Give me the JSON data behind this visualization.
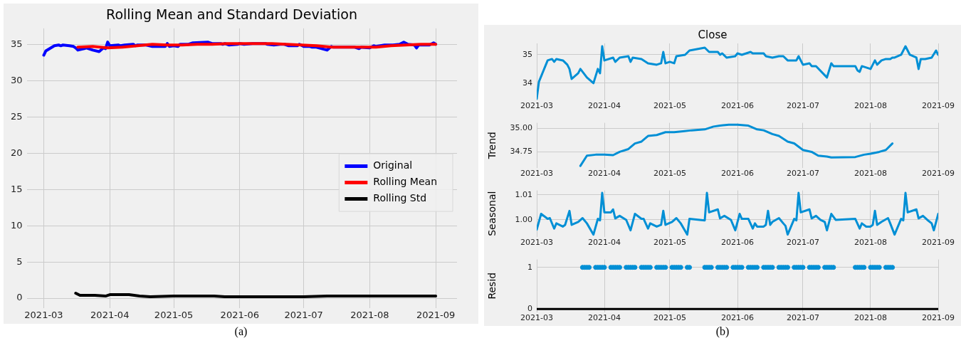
{
  "chart_data": [
    {
      "type": "line",
      "title": "Rolling Mean and Standard Deviation",
      "xlim": [
        "2021-02-21",
        "2021-09-11"
      ],
      "xticks": [
        "2021-03",
        "2021-04",
        "2021-05",
        "2021-06",
        "2021-07",
        "2021-08",
        "2021-09"
      ],
      "ylim": [
        -1.4,
        37.2
      ],
      "yticks": [
        0,
        5,
        10,
        15,
        20,
        25,
        30,
        35
      ],
      "grid": true,
      "legend": "right",
      "marker": "none",
      "annotations": [
        "(a)"
      ],
      "series": [
        {
          "name": "Original",
          "color": "#0000ff",
          "x": [
            "2021-03-01",
            "2021-03-02",
            "2021-03-06",
            "2021-03-08",
            "2021-03-09",
            "2021-03-10",
            "2021-03-13",
            "2021-03-15",
            "2021-03-16",
            "2021-03-17",
            "2021-03-20",
            "2021-03-21",
            "2021-03-22",
            "2021-03-24",
            "2021-03-27",
            "2021-03-29",
            "2021-03-30",
            "2021-03-31",
            "2021-04-01",
            "2021-04-05",
            "2021-04-06",
            "2021-04-08",
            "2021-04-12",
            "2021-04-13",
            "2021-04-14",
            "2021-04-18",
            "2021-04-21",
            "2021-04-25",
            "2021-04-27",
            "2021-04-28",
            "2021-04-29",
            "2021-05-01",
            "2021-05-03",
            "2021-05-04",
            "2021-05-08",
            "2021-05-10",
            "2021-05-17",
            "2021-05-19",
            "2021-05-23",
            "2021-05-24",
            "2021-05-25",
            "2021-05-27",
            "2021-05-31",
            "2021-06-01",
            "2021-06-03",
            "2021-06-07",
            "2021-06-08",
            "2021-06-13",
            "2021-06-14",
            "2021-06-17",
            "2021-06-20",
            "2021-06-22",
            "2021-06-24",
            "2021-06-28",
            "2021-06-29",
            "2021-07-01",
            "2021-07-04",
            "2021-07-05",
            "2021-07-07",
            "2021-07-12",
            "2021-07-14",
            "2021-07-15",
            "2021-07-25",
            "2021-07-26",
            "2021-07-27",
            "2021-07-28",
            "2021-08-01",
            "2021-08-03",
            "2021-08-04",
            "2021-08-06",
            "2021-08-08",
            "2021-08-10",
            "2021-08-11",
            "2021-08-12",
            "2021-08-15",
            "2021-08-17",
            "2021-08-19",
            "2021-08-22",
            "2021-08-23",
            "2021-08-24",
            "2021-08-26",
            "2021-08-29",
            "2021-08-31",
            "2021-09-01"
          ],
          "values": [
            33.5,
            34.1,
            34.8,
            34.9,
            34.8,
            34.9,
            34.8,
            34.7,
            34.5,
            34.2,
            34.4,
            34.5,
            34.4,
            34.2,
            34.0,
            34.5,
            34.4,
            35.3,
            34.8,
            34.9,
            34.8,
            34.9,
            35.0,
            34.8,
            34.9,
            34.9,
            34.7,
            34.7,
            34.7,
            35.1,
            34.7,
            34.8,
            34.7,
            35.0,
            35.0,
            35.2,
            35.3,
            35.1,
            35.1,
            35.0,
            35.1,
            34.9,
            35.0,
            35.1,
            35.0,
            35.1,
            35.1,
            35.1,
            35.0,
            34.9,
            35.0,
            35.0,
            34.8,
            34.8,
            35.0,
            34.7,
            34.7,
            34.6,
            34.6,
            34.2,
            34.7,
            34.6,
            34.6,
            34.5,
            34.4,
            34.6,
            34.5,
            34.8,
            34.7,
            34.8,
            34.9,
            34.9,
            34.9,
            34.9,
            35.0,
            35.3,
            35.0,
            34.9,
            34.5,
            34.9,
            34.9,
            34.9,
            35.2,
            35.0
          ]
        },
        {
          "name": "Rolling Mean",
          "color": "#ff0000",
          "x": [
            "2021-03-17",
            "2021-03-24",
            "2021-03-31",
            "2021-04-07",
            "2021-04-14",
            "2021-04-21",
            "2021-04-28",
            "2021-05-05",
            "2021-05-12",
            "2021-05-19",
            "2021-05-26",
            "2021-06-02",
            "2021-06-09",
            "2021-06-16",
            "2021-06-23",
            "2021-06-30",
            "2021-07-07",
            "2021-07-14",
            "2021-07-21",
            "2021-07-28",
            "2021-08-04",
            "2021-08-11",
            "2021-08-18",
            "2021-08-25",
            "2021-09-01"
          ],
          "values": [
            34.6,
            34.7,
            34.5,
            34.6,
            34.8,
            35.0,
            34.9,
            34.9,
            35.0,
            35.0,
            35.1,
            35.1,
            35.1,
            35.1,
            35.0,
            34.9,
            34.8,
            34.6,
            34.6,
            34.6,
            34.6,
            34.8,
            34.9,
            35.0,
            35.0
          ]
        },
        {
          "name": "Rolling Std",
          "color": "#000000",
          "x": [
            "2021-03-16",
            "2021-03-18",
            "2021-03-25",
            "2021-03-30",
            "2021-04-01",
            "2021-04-10",
            "2021-04-15",
            "2021-04-20",
            "2021-05-01",
            "2021-05-20",
            "2021-05-25",
            "2021-06-15",
            "2021-07-01",
            "2021-07-12",
            "2021-08-01",
            "2021-09-01"
          ],
          "values": [
            0.7,
            0.4,
            0.4,
            0.3,
            0.5,
            0.5,
            0.3,
            0.2,
            0.3,
            0.3,
            0.2,
            0.2,
            0.2,
            0.3,
            0.3,
            0.3
          ]
        }
      ]
    },
    {
      "type": "line",
      "title": "Close",
      "xlim": [
        "2021-03-01",
        "2021-09-01"
      ],
      "xticks": [
        "2021-03",
        "2021-04",
        "2021-05",
        "2021-06",
        "2021-07",
        "2021-08",
        "2021-09"
      ],
      "ylim": [
        33.4,
        35.4
      ],
      "yticks": [
        34,
        35
      ],
      "grid": true,
      "marker": "none",
      "series": [
        {
          "color": "#008fd5",
          "x": [
            "2021-03-01",
            "2021-03-02",
            "2021-03-06",
            "2021-03-08",
            "2021-03-09",
            "2021-03-10",
            "2021-03-13",
            "2021-03-15",
            "2021-03-16",
            "2021-03-17",
            "2021-03-20",
            "2021-03-21",
            "2021-03-22",
            "2021-03-24",
            "2021-03-27",
            "2021-03-29",
            "2021-03-30",
            "2021-03-31",
            "2021-04-01",
            "2021-04-05",
            "2021-04-06",
            "2021-04-08",
            "2021-04-12",
            "2021-04-13",
            "2021-04-14",
            "2021-04-18",
            "2021-04-21",
            "2021-04-25",
            "2021-04-27",
            "2021-04-28",
            "2021-04-29",
            "2021-05-01",
            "2021-05-03",
            "2021-05-04",
            "2021-05-08",
            "2021-05-10",
            "2021-05-17",
            "2021-05-19",
            "2021-05-23",
            "2021-05-24",
            "2021-05-25",
            "2021-05-27",
            "2021-05-31",
            "2021-06-01",
            "2021-06-03",
            "2021-06-07",
            "2021-06-08",
            "2021-06-13",
            "2021-06-14",
            "2021-06-17",
            "2021-06-20",
            "2021-06-22",
            "2021-06-24",
            "2021-06-28",
            "2021-06-29",
            "2021-07-01",
            "2021-07-04",
            "2021-07-05",
            "2021-07-07",
            "2021-07-12",
            "2021-07-14",
            "2021-07-15",
            "2021-07-25",
            "2021-07-26",
            "2021-07-27",
            "2021-07-28",
            "2021-08-01",
            "2021-08-03",
            "2021-08-04",
            "2021-08-06",
            "2021-08-08",
            "2021-08-10",
            "2021-08-11",
            "2021-08-12",
            "2021-08-15",
            "2021-08-17",
            "2021-08-19",
            "2021-08-22",
            "2021-08-23",
            "2021-08-24",
            "2021-08-26",
            "2021-08-29",
            "2021-08-31",
            "2021-09-01"
          ],
          "values": [
            33.45,
            34.05,
            34.8,
            34.85,
            34.75,
            34.85,
            34.8,
            34.65,
            34.5,
            34.15,
            34.35,
            34.5,
            34.4,
            34.2,
            34.0,
            34.5,
            34.35,
            35.3,
            34.8,
            34.9,
            34.75,
            34.9,
            34.95,
            34.75,
            34.9,
            34.85,
            34.7,
            34.65,
            34.7,
            35.1,
            34.7,
            34.75,
            34.7,
            34.95,
            35.0,
            35.15,
            35.25,
            35.1,
            35.1,
            35.0,
            35.05,
            34.9,
            34.95,
            35.05,
            35.0,
            35.1,
            35.05,
            35.05,
            34.95,
            34.9,
            34.95,
            34.95,
            34.8,
            34.8,
            34.95,
            34.65,
            34.7,
            34.6,
            34.6,
            34.2,
            34.7,
            34.6,
            34.6,
            34.45,
            34.4,
            34.6,
            34.5,
            34.8,
            34.65,
            34.8,
            34.85,
            34.85,
            34.9,
            34.9,
            35.0,
            35.3,
            35.0,
            34.9,
            34.5,
            34.85,
            34.85,
            34.9,
            35.15,
            35.0
          ]
        }
      ]
    },
    {
      "type": "line",
      "ylabel": "Trend",
      "xlim": [
        "2021-03-01",
        "2021-09-01"
      ],
      "xticks": [
        "2021-03",
        "2021-04",
        "2021-05",
        "2021-06",
        "2021-07",
        "2021-08",
        "2021-09"
      ],
      "ylim": [
        34.58,
        35.06
      ],
      "yticks": [
        {
          "value": 34.75,
          "label": "34.75"
        },
        {
          "value": 35,
          "label": "35.00"
        }
      ],
      "grid": true,
      "marker": "none",
      "series": [
        {
          "color": "#008fd5",
          "x": [
            "2021-03-21",
            "2021-03-24",
            "2021-03-28",
            "2021-04-01",
            "2021-04-05",
            "2021-04-08",
            "2021-04-12",
            "2021-04-15",
            "2021-04-18",
            "2021-04-21",
            "2021-04-25",
            "2021-04-29",
            "2021-05-03",
            "2021-05-07",
            "2021-05-11",
            "2021-05-17",
            "2021-05-21",
            "2021-05-24",
            "2021-05-28",
            "2021-06-01",
            "2021-06-06",
            "2021-06-10",
            "2021-06-13",
            "2021-06-17",
            "2021-06-20",
            "2021-06-24",
            "2021-06-27",
            "2021-07-01",
            "2021-07-05",
            "2021-07-08",
            "2021-07-12",
            "2021-07-14",
            "2021-07-25",
            "2021-07-29",
            "2021-08-01",
            "2021-08-05",
            "2021-08-08",
            "2021-08-11"
          ],
          "values": [
            34.6,
            34.71,
            34.72,
            34.72,
            34.715,
            34.75,
            34.78,
            34.84,
            34.86,
            34.92,
            34.93,
            34.96,
            34.96,
            34.97,
            34.98,
            34.99,
            35.02,
            35.03,
            35.04,
            35.04,
            35.03,
            34.99,
            34.98,
            34.94,
            34.92,
            34.86,
            34.84,
            34.77,
            34.75,
            34.71,
            34.7,
            34.69,
            34.695,
            34.72,
            34.73,
            34.75,
            34.77,
            34.84
          ]
        }
      ]
    },
    {
      "type": "line",
      "ylabel": "Seasonal",
      "xlim": [
        "2021-03-01",
        "2021-09-01"
      ],
      "xticks": [
        "2021-03",
        "2021-04",
        "2021-05",
        "2021-06",
        "2021-07",
        "2021-08",
        "2021-09"
      ],
      "ylim": [
        0.9932,
        1.0118
      ],
      "yticks": [
        {
          "value": 1,
          "label": "1.00"
        },
        {
          "value": 1.01,
          "label": "1.01"
        }
      ],
      "grid": true,
      "marker": "none",
      "series": [
        {
          "color": "#008fd5",
          "x": [
            "2021-03-01",
            "2021-03-03",
            "2021-03-06",
            "2021-03-07",
            "2021-03-09",
            "2021-03-10",
            "2021-03-13",
            "2021-03-14",
            "2021-03-16",
            "2021-03-17",
            "2021-03-20",
            "2021-03-22",
            "2021-03-24",
            "2021-03-27",
            "2021-03-29",
            "2021-03-30",
            "2021-03-31",
            "2021-04-01",
            "2021-04-04",
            "2021-04-05",
            "2021-04-06",
            "2021-04-08",
            "2021-04-11",
            "2021-04-13",
            "2021-04-15",
            "2021-04-18",
            "2021-04-19",
            "2021-04-21",
            "2021-04-22",
            "2021-04-25",
            "2021-04-27",
            "2021-04-28",
            "2021-04-29",
            "2021-05-02",
            "2021-05-04",
            "2021-05-06",
            "2021-05-09",
            "2021-05-10",
            "2021-05-17",
            "2021-05-18",
            "2021-05-19",
            "2021-05-23",
            "2021-05-24",
            "2021-05-26",
            "2021-05-29",
            "2021-05-31",
            "2021-06-02",
            "2021-06-03",
            "2021-06-06",
            "2021-06-08",
            "2021-06-09",
            "2021-06-10",
            "2021-06-13",
            "2021-06-14",
            "2021-06-15",
            "2021-06-16",
            "2021-06-17",
            "2021-06-20",
            "2021-06-22",
            "2021-06-23",
            "2021-06-24",
            "2021-06-27",
            "2021-06-28",
            "2021-06-29",
            "2021-06-30",
            "2021-07-04",
            "2021-07-05",
            "2021-07-07",
            "2021-07-09",
            "2021-07-11",
            "2021-07-12",
            "2021-07-14",
            "2021-07-16",
            "2021-07-25",
            "2021-07-27",
            "2021-07-28",
            "2021-07-30",
            "2021-08-01",
            "2021-08-02",
            "2021-08-03",
            "2021-08-04",
            "2021-08-06",
            "2021-08-09",
            "2021-08-10",
            "2021-08-12",
            "2021-08-15",
            "2021-08-16",
            "2021-08-17",
            "2021-08-18",
            "2021-08-22",
            "2021-08-23",
            "2021-08-25",
            "2021-08-27",
            "2021-08-29",
            "2021-08-30",
            "2021-09-01"
          ],
          "values": [
            0.9961,
            1.0024,
            1.0004,
            1.0007,
            0.9965,
            0.9986,
            0.9973,
            0.998,
            1.0036,
            0.998,
            0.9992,
            1.0007,
            0.9986,
            0.9941,
            1.0004,
            0.9998,
            1.0108,
            1.003,
            1.003,
            1.0042,
            1.0006,
            1.0016,
            1.0,
            0.9958,
            1.0024,
            1.0004,
            1.0004,
            0.9965,
            0.9986,
            0.9973,
            0.998,
            1.0036,
            0.998,
            0.9992,
            1.0007,
            0.9986,
            0.9941,
            1.0004,
            0.9998,
            1.0108,
            1.003,
            1.0042,
            1.0006,
            1.0016,
            1.0,
            0.9958,
            1.0024,
            1.0004,
            1.0004,
            0.9965,
            0.9986,
            0.9973,
            0.9973,
            0.998,
            1.0036,
            0.998,
            0.9992,
            1.0007,
            0.9986,
            0.9976,
            0.9941,
            1.0004,
            0.9998,
            1.0108,
            1.003,
            1.0042,
            1.0006,
            1.0016,
            1.0,
            0.9992,
            0.9958,
            1.0024,
            1.0,
            1.0004,
            0.9965,
            0.9986,
            0.9973,
            0.9973,
            0.998,
            1.0036,
            0.998,
            0.9992,
            1.0007,
            0.9986,
            0.9941,
            1.0004,
            0.9998,
            1.0108,
            1.003,
            1.0042,
            1.0006,
            1.0016,
            1.0,
            0.9986,
            0.9958,
            1.0024
          ]
        }
      ]
    },
    {
      "type": "scatter",
      "ylabel": "Resid",
      "xlim": [
        "2021-03-01",
        "2021-09-01"
      ],
      "xticks": [
        "2021-03",
        "2021-04",
        "2021-05",
        "2021-06",
        "2021-07",
        "2021-08",
        "2021-09"
      ],
      "ylim": [
        -0.08,
        1.19
      ],
      "yticks": [
        0,
        1
      ],
      "grid": true,
      "marker": "circle",
      "annotations": [
        "(b)"
      ],
      "series": [
        {
          "type": "line",
          "color": "#000000",
          "marker": "none",
          "x": [
            "2021-03-01",
            "2021-09-01"
          ],
          "values": [
            0,
            0
          ]
        },
        {
          "color": "#008fd5",
          "x": [
            "2021-03-22",
            "2021-03-23",
            "2021-03-24",
            "2021-03-25",
            "2021-03-28",
            "2021-03-29",
            "2021-03-30",
            "2021-03-31",
            "2021-04-01",
            "2021-04-04",
            "2021-04-05",
            "2021-04-06",
            "2021-04-07",
            "2021-04-08",
            "2021-04-11",
            "2021-04-12",
            "2021-04-13",
            "2021-04-14",
            "2021-04-15",
            "2021-04-18",
            "2021-04-19",
            "2021-04-20",
            "2021-04-21",
            "2021-04-22",
            "2021-04-25",
            "2021-04-26",
            "2021-04-27",
            "2021-04-28",
            "2021-04-29",
            "2021-05-02",
            "2021-05-03",
            "2021-05-04",
            "2021-05-05",
            "2021-05-06",
            "2021-05-09",
            "2021-05-10",
            "2021-05-17",
            "2021-05-18",
            "2021-05-19",
            "2021-05-20",
            "2021-05-23",
            "2021-05-24",
            "2021-05-25",
            "2021-05-26",
            "2021-05-27",
            "2021-05-30",
            "2021-05-31",
            "2021-06-01",
            "2021-06-02",
            "2021-06-03",
            "2021-06-06",
            "2021-06-07",
            "2021-06-08",
            "2021-06-09",
            "2021-06-10",
            "2021-06-13",
            "2021-06-14",
            "2021-06-15",
            "2021-06-16",
            "2021-06-17",
            "2021-06-20",
            "2021-06-21",
            "2021-06-22",
            "2021-06-23",
            "2021-06-24",
            "2021-06-27",
            "2021-06-28",
            "2021-06-29",
            "2021-06-30",
            "2021-07-01",
            "2021-07-04",
            "2021-07-05",
            "2021-07-06",
            "2021-07-07",
            "2021-07-08",
            "2021-07-11",
            "2021-07-12",
            "2021-07-13",
            "2021-07-14",
            "2021-07-15",
            "2021-07-25",
            "2021-07-26",
            "2021-07-27",
            "2021-07-28",
            "2021-07-29",
            "2021-08-01",
            "2021-08-02",
            "2021-08-03",
            "2021-08-04",
            "2021-08-05",
            "2021-08-08",
            "2021-08-09",
            "2021-08-10",
            "2021-08-11"
          ],
          "values": [
            1,
            1,
            1,
            1,
            1,
            1,
            1,
            1,
            1,
            1,
            1,
            1,
            1,
            1,
            1,
            1,
            1,
            1,
            1,
            1,
            1,
            1,
            1,
            1,
            1,
            1,
            1,
            1,
            1,
            1,
            1,
            1,
            1,
            1,
            1,
            1,
            1,
            1,
            1,
            1,
            1,
            1,
            1,
            1,
            1,
            1,
            1,
            1,
            1,
            1,
            1,
            1,
            1,
            1,
            1,
            1,
            1,
            1,
            1,
            1,
            1,
            1,
            1,
            1,
            1,
            1,
            1,
            1,
            1,
            1,
            1,
            1,
            1,
            1,
            1,
            1,
            1,
            1,
            1,
            1,
            1,
            1,
            1,
            1,
            1,
            1,
            1,
            1,
            1,
            1,
            1,
            1,
            1,
            1
          ]
        }
      ]
    }
  ]
}
